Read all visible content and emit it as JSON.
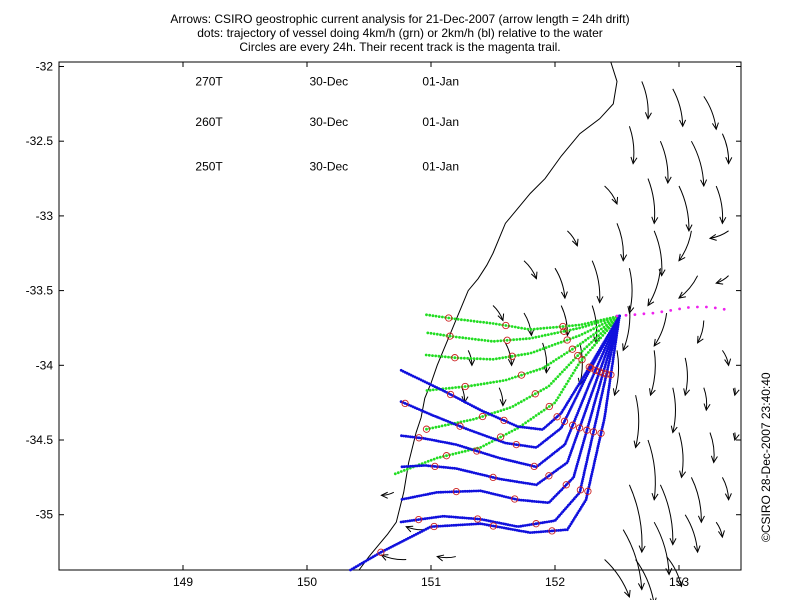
{
  "title_lines": [
    "Arrows: CSIRO geostrophic current analysis for 21-Dec-2007 (arrow length = 24h drift)",
    "dots: trajectory of vessel doing 4km/h (grn) or 2km/h (bl) relative to the water",
    "Circles are every 24h. Their recent track is the magenta trail."
  ],
  "copyright": "©CSIRO 28-Dec-2007 23:40:40",
  "chart_data": {
    "type": "scatter",
    "title": "",
    "xlim": [
      148.0,
      153.5
    ],
    "ylim": [
      -35.37,
      -31.97
    ],
    "xticks": [
      149,
      150,
      151,
      152,
      153
    ],
    "yticks": [
      -32,
      -32.5,
      -33,
      -33.5,
      -34,
      -34.5,
      -35
    ],
    "xtick_labels": [
      "149",
      "150",
      "151",
      "152",
      "153"
    ],
    "ytick_labels": [
      "-32",
      "-32.5",
      "-33",
      "-33.5",
      "-34",
      "-34.5",
      "-35"
    ],
    "grid": false,
    "annotations": [
      {
        "heading": "270T",
        "date1": "30-Dec",
        "date2": "01-Jan",
        "x": 149.1,
        "y": -32.1
      },
      {
        "heading": "260T",
        "date1": "30-Dec",
        "date2": "01-Jan",
        "x": 149.1,
        "y": -32.37
      },
      {
        "heading": "250T",
        "date1": "30-Dec",
        "date2": "01-Jan",
        "x": 149.1,
        "y": -32.67
      }
    ],
    "colors": {
      "green": "#22dd22",
      "blue": "#1010dd",
      "magenta": "#ee22ee",
      "circle": "#cc2222",
      "arrow": "#000000",
      "coast": "#000000"
    },
    "magenta_trail": [
      [
        152.5,
        -33.67
      ],
      [
        152.65,
        -33.66
      ],
      [
        152.8,
        -33.65
      ],
      [
        152.95,
        -33.63
      ],
      [
        153.1,
        -33.61
      ],
      [
        153.25,
        -33.61
      ],
      [
        153.4,
        -33.63
      ]
    ],
    "release_point": [
      152.52,
      -33.67
    ],
    "green_tracks": [
      [
        [
          152.52,
          -33.67
        ],
        [
          152.2,
          -33.73
        ],
        [
          151.8,
          -33.76
        ],
        [
          151.5,
          -33.72
        ],
        [
          151.2,
          -33.69
        ],
        [
          150.95,
          -33.66
        ]
      ],
      [
        [
          152.52,
          -33.67
        ],
        [
          152.2,
          -33.75
        ],
        [
          151.8,
          -33.82
        ],
        [
          151.5,
          -33.84
        ],
        [
          151.2,
          -33.81
        ],
        [
          150.95,
          -33.78
        ]
      ],
      [
        [
          152.52,
          -33.67
        ],
        [
          152.2,
          -33.8
        ],
        [
          151.8,
          -33.92
        ],
        [
          151.5,
          -33.96
        ],
        [
          151.2,
          -33.95
        ],
        [
          150.95,
          -33.93
        ]
      ],
      [
        [
          152.52,
          -33.67
        ],
        [
          152.2,
          -33.86
        ],
        [
          151.9,
          -34.02
        ],
        [
          151.6,
          -34.1
        ],
        [
          151.3,
          -34.14
        ],
        [
          150.95,
          -34.17
        ]
      ],
      [
        [
          152.52,
          -33.67
        ],
        [
          152.2,
          -33.92
        ],
        [
          151.95,
          -34.14
        ],
        [
          151.65,
          -34.28
        ],
        [
          151.35,
          -34.36
        ],
        [
          150.95,
          -34.43
        ]
      ],
      [
        [
          152.52,
          -33.67
        ],
        [
          152.2,
          -33.98
        ],
        [
          152.0,
          -34.25
        ],
        [
          151.7,
          -34.42
        ],
        [
          151.4,
          -34.55
        ],
        [
          151.05,
          -34.62
        ],
        [
          150.7,
          -34.73
        ]
      ]
    ],
    "blue_tracks": [
      [
        [
          152.52,
          -33.67
        ],
        [
          152.25,
          -34.05
        ],
        [
          152.05,
          -34.32
        ],
        [
          151.9,
          -34.43
        ],
        [
          151.7,
          -34.41
        ],
        [
          151.4,
          -34.3
        ],
        [
          151.1,
          -34.17
        ],
        [
          150.75,
          -34.03
        ]
      ],
      [
        [
          152.52,
          -33.67
        ],
        [
          152.25,
          -34.08
        ],
        [
          152.05,
          -34.42
        ],
        [
          151.85,
          -34.55
        ],
        [
          151.6,
          -34.52
        ],
        [
          151.3,
          -34.43
        ],
        [
          151.0,
          -34.33
        ],
        [
          150.75,
          -34.24
        ]
      ],
      [
        [
          152.52,
          -33.67
        ],
        [
          152.28,
          -34.12
        ],
        [
          152.08,
          -34.53
        ],
        [
          151.85,
          -34.68
        ],
        [
          151.55,
          -34.62
        ],
        [
          151.2,
          -34.53
        ],
        [
          150.95,
          -34.49
        ],
        [
          150.75,
          -34.47
        ]
      ],
      [
        [
          152.52,
          -33.67
        ],
        [
          152.3,
          -34.18
        ],
        [
          152.1,
          -34.65
        ],
        [
          151.85,
          -34.8
        ],
        [
          151.55,
          -34.76
        ],
        [
          151.2,
          -34.69
        ],
        [
          150.95,
          -34.67
        ],
        [
          150.75,
          -34.68
        ]
      ],
      [
        [
          152.52,
          -33.67
        ],
        [
          152.33,
          -34.22
        ],
        [
          152.15,
          -34.75
        ],
        [
          151.95,
          -34.92
        ],
        [
          151.7,
          -34.9
        ],
        [
          151.4,
          -34.84
        ],
        [
          151.05,
          -34.85
        ],
        [
          150.75,
          -34.9
        ]
      ],
      [
        [
          152.52,
          -33.67
        ],
        [
          152.35,
          -34.3
        ],
        [
          152.2,
          -34.85
        ],
        [
          152.0,
          -35.04
        ],
        [
          151.7,
          -35.08
        ],
        [
          151.4,
          -35.03
        ],
        [
          151.1,
          -35.01
        ],
        [
          150.75,
          -35.05
        ]
      ],
      [
        [
          152.52,
          -33.67
        ],
        [
          152.4,
          -34.35
        ],
        [
          152.25,
          -34.9
        ],
        [
          152.1,
          -35.1
        ],
        [
          151.8,
          -35.12
        ],
        [
          151.4,
          -35.06
        ],
        [
          151.0,
          -35.08
        ],
        [
          150.6,
          -35.25
        ],
        [
          150.35,
          -35.37
        ]
      ]
    ],
    "coastline": [
      [
        152.45,
        -31.97
      ],
      [
        152.5,
        -32.1
      ],
      [
        152.47,
        -32.25
      ],
      [
        152.36,
        -32.35
      ],
      [
        152.2,
        -32.45
      ],
      [
        152.05,
        -32.6
      ],
      [
        151.92,
        -32.75
      ],
      [
        151.8,
        -32.85
      ],
      [
        151.7,
        -32.95
      ],
      [
        151.6,
        -33.05
      ],
      [
        151.55,
        -33.15
      ],
      [
        151.5,
        -33.25
      ],
      [
        151.45,
        -33.33
      ],
      [
        151.38,
        -33.42
      ],
      [
        151.3,
        -33.5
      ],
      [
        151.25,
        -33.6
      ],
      [
        151.2,
        -33.7
      ],
      [
        151.15,
        -33.8
      ],
      [
        151.1,
        -33.9
      ],
      [
        151.05,
        -34.0
      ],
      [
        151.0,
        -34.12
      ],
      [
        150.95,
        -34.22
      ],
      [
        150.92,
        -34.35
      ],
      [
        150.88,
        -34.45
      ],
      [
        150.85,
        -34.55
      ],
      [
        150.82,
        -34.65
      ],
      [
        150.8,
        -34.75
      ],
      [
        150.78,
        -34.85
      ],
      [
        150.75,
        -34.95
      ],
      [
        150.72,
        -35.05
      ],
      [
        150.65,
        -35.13
      ],
      [
        150.58,
        -35.2
      ],
      [
        150.5,
        -35.28
      ],
      [
        150.42,
        -35.37
      ]
    ],
    "arrows": [
      [
        152.7,
        -32.1,
        0.05,
        -0.25
      ],
      [
        152.95,
        -32.15,
        0.08,
        -0.25
      ],
      [
        153.2,
        -32.2,
        0.1,
        -0.22
      ],
      [
        152.6,
        -32.4,
        0.03,
        -0.25
      ],
      [
        152.85,
        -32.5,
        0.06,
        -0.28
      ],
      [
        153.1,
        -32.5,
        0.1,
        -0.3
      ],
      [
        153.35,
        -32.45,
        0.05,
        -0.2
      ],
      [
        152.4,
        -32.8,
        0.1,
        -0.12
      ],
      [
        152.75,
        -32.75,
        0.05,
        -0.3
      ],
      [
        153.0,
        -32.8,
        0.08,
        -0.3
      ],
      [
        153.3,
        -32.8,
        0.05,
        -0.25
      ],
      [
        152.1,
        -33.1,
        0.08,
        -0.1
      ],
      [
        152.5,
        -33.05,
        0.05,
        -0.25
      ],
      [
        152.8,
        -33.1,
        0.06,
        -0.3
      ],
      [
        153.1,
        -33.1,
        -0.1,
        -0.2
      ],
      [
        153.4,
        -33.1,
        -0.15,
        -0.05
      ],
      [
        151.75,
        -33.3,
        0.1,
        -0.12
      ],
      [
        152.0,
        -33.35,
        0.08,
        -0.2
      ],
      [
        152.3,
        -33.3,
        0.06,
        -0.28
      ],
      [
        152.6,
        -33.35,
        0.0,
        -0.3
      ],
      [
        152.85,
        -33.35,
        -0.1,
        -0.25
      ],
      [
        153.15,
        -33.4,
        -0.15,
        -0.15
      ],
      [
        153.4,
        -33.4,
        -0.1,
        -0.05
      ],
      [
        151.5,
        -33.6,
        0.08,
        -0.1
      ],
      [
        151.75,
        -33.65,
        0.06,
        -0.15
      ],
      [
        152.05,
        -33.6,
        0.05,
        -0.2
      ],
      [
        152.3,
        -33.6,
        0.03,
        -0.25
      ],
      [
        152.6,
        -33.6,
        -0.05,
        -0.3
      ],
      [
        152.9,
        -33.65,
        -0.1,
        -0.22
      ],
      [
        153.2,
        -33.7,
        -0.05,
        -0.15
      ],
      [
        151.3,
        -33.9,
        0.03,
        -0.1
      ],
      [
        151.6,
        -33.85,
        0.05,
        -0.15
      ],
      [
        151.9,
        -33.85,
        0.03,
        -0.2
      ],
      [
        152.2,
        -33.85,
        0.0,
        -0.28
      ],
      [
        152.5,
        -33.9,
        -0.02,
        -0.3
      ],
      [
        152.8,
        -33.9,
        -0.03,
        -0.3
      ],
      [
        153.05,
        -33.95,
        0.0,
        -0.25
      ],
      [
        153.35,
        -33.9,
        0.05,
        -0.1
      ],
      [
        151.25,
        -34.15,
        0.02,
        -0.1
      ],
      [
        151.55,
        -34.15,
        0.03,
        -0.12
      ],
      [
        152.65,
        -34.2,
        0.0,
        -0.35
      ],
      [
        152.95,
        -34.15,
        0.0,
        -0.3
      ],
      [
        153.2,
        -34.15,
        0.02,
        -0.15
      ],
      [
        153.45,
        -34.15,
        0.0,
        -0.05
      ],
      [
        152.75,
        -34.5,
        0.05,
        -0.4
      ],
      [
        153.0,
        -34.45,
        0.02,
        -0.3
      ],
      [
        153.25,
        -34.45,
        0.03,
        -0.2
      ],
      [
        153.45,
        -34.45,
        0.0,
        -0.05
      ],
      [
        150.7,
        -34.85,
        -0.1,
        -0.02
      ],
      [
        152.6,
        -34.8,
        0.1,
        -0.45
      ],
      [
        152.85,
        -34.8,
        0.1,
        -0.4
      ],
      [
        153.1,
        -34.75,
        0.08,
        -0.3
      ],
      [
        153.35,
        -34.75,
        0.05,
        -0.15
      ],
      [
        150.95,
        -35.1,
        -0.15,
        0.02
      ],
      [
        152.55,
        -35.1,
        0.15,
        -0.4
      ],
      [
        152.8,
        -35.05,
        0.12,
        -0.35
      ],
      [
        153.05,
        -35.0,
        0.1,
        -0.25
      ],
      [
        153.3,
        -35.05,
        0.05,
        -0.1
      ],
      [
        150.8,
        -35.3,
        -0.2,
        0.03
      ],
      [
        151.2,
        -35.28,
        -0.15,
        0.0
      ],
      [
        152.4,
        -35.3,
        0.2,
        -0.25
      ],
      [
        152.65,
        -35.3,
        0.15,
        -0.3
      ],
      [
        152.9,
        -35.28,
        0.12,
        -0.2
      ]
    ]
  }
}
